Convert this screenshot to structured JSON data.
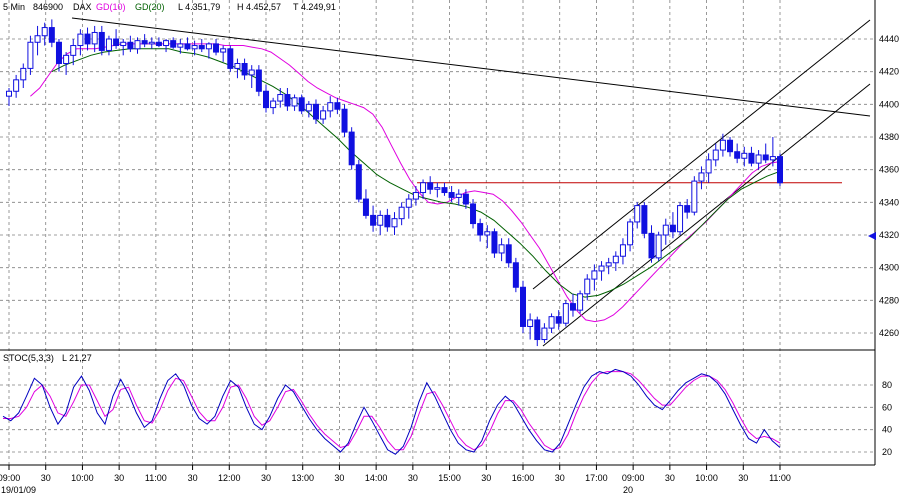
{
  "header": {
    "interval": "5 Min",
    "code": "846900",
    "symbol": "DAX",
    "ma1_label": "GD(10)",
    "ma2_label": "GD(20)",
    "low": "L  4.351,79",
    "high": "H  4.452,57",
    "bottom": "T  4.249,91"
  },
  "stoch": {
    "label": "STOC(5,3,3)",
    "value": "L  21,27"
  },
  "dates": {
    "start": "19/01/09",
    "next_day": "20"
  },
  "colors": {
    "candle": "#1010e0",
    "ma10": "#e000e0",
    "ma20": "#006000",
    "trend": "#000000",
    "support": "#c00000",
    "stoch_k": "#0000c0",
    "stoch_d": "#e000e0"
  },
  "chart_data": {
    "type": "candlestick",
    "price_axis": {
      "ticks": [
        4260,
        4280,
        4300,
        4320,
        4340,
        4360,
        4380,
        4400,
        4420,
        4440
      ]
    },
    "stoch_axis": {
      "ticks": [
        20,
        40,
        60,
        80
      ]
    },
    "x_ticks": [
      "09:00",
      "30",
      "10:00",
      "30",
      "11:00",
      "30",
      "12:00",
      "30",
      "13:00",
      "30",
      "14:00",
      "30",
      "15:00",
      "30",
      "16:00",
      "30",
      "17:00",
      "09:00",
      "30",
      "10:00",
      "30",
      "11:00"
    ],
    "grid": true,
    "support_level": 4352,
    "candles": [
      {
        "o": 4405,
        "h": 4410,
        "l": 4399,
        "c": 4408
      },
      {
        "o": 4408,
        "h": 4418,
        "l": 4404,
        "c": 4415
      },
      {
        "o": 4415,
        "h": 4425,
        "l": 4410,
        "c": 4422
      },
      {
        "o": 4422,
        "h": 4442,
        "l": 4418,
        "c": 4438
      },
      {
        "o": 4438,
        "h": 4448,
        "l": 4430,
        "c": 4442
      },
      {
        "o": 4442,
        "h": 4450,
        "l": 4436,
        "c": 4447
      },
      {
        "o": 4447,
        "h": 4452,
        "l": 4435,
        "c": 4438
      },
      {
        "o": 4438,
        "h": 4440,
        "l": 4420,
        "c": 4425
      },
      {
        "o": 4425,
        "h": 4432,
        "l": 4418,
        "c": 4430
      },
      {
        "o": 4430,
        "h": 4440,
        "l": 4424,
        "c": 4436
      },
      {
        "o": 4436,
        "h": 4446,
        "l": 4430,
        "c": 4443
      },
      {
        "o": 4443,
        "h": 4447,
        "l": 4433,
        "c": 4437
      },
      {
        "o": 4437,
        "h": 4448,
        "l": 4432,
        "c": 4444
      },
      {
        "o": 4444,
        "h": 4448,
        "l": 4430,
        "c": 4433
      },
      {
        "o": 4433,
        "h": 4442,
        "l": 4430,
        "c": 4440
      },
      {
        "o": 4440,
        "h": 4446,
        "l": 4434,
        "c": 4436
      },
      {
        "o": 4436,
        "h": 4440,
        "l": 4430,
        "c": 4438
      },
      {
        "o": 4438,
        "h": 4442,
        "l": 4432,
        "c": 4434
      },
      {
        "o": 4434,
        "h": 4441,
        "l": 4431,
        "c": 4439
      },
      {
        "o": 4439,
        "h": 4443,
        "l": 4435,
        "c": 4437
      },
      {
        "o": 4437,
        "h": 4441,
        "l": 4434,
        "c": 4438
      },
      {
        "o": 4438,
        "h": 4441,
        "l": 4435,
        "c": 4436
      },
      {
        "o": 4436,
        "h": 4440,
        "l": 4432,
        "c": 4439
      },
      {
        "o": 4439,
        "h": 4441,
        "l": 4434,
        "c": 4435
      },
      {
        "o": 4435,
        "h": 4440,
        "l": 4431,
        "c": 4437
      },
      {
        "o": 4437,
        "h": 4441,
        "l": 4433,
        "c": 4434
      },
      {
        "o": 4434,
        "h": 4439,
        "l": 4430,
        "c": 4436
      },
      {
        "o": 4436,
        "h": 4440,
        "l": 4432,
        "c": 4434
      },
      {
        "o": 4434,
        "h": 4438,
        "l": 4428,
        "c": 4437
      },
      {
        "o": 4437,
        "h": 4440,
        "l": 4430,
        "c": 4432
      },
      {
        "o": 4432,
        "h": 4436,
        "l": 4426,
        "c": 4434
      },
      {
        "o": 4434,
        "h": 4436,
        "l": 4420,
        "c": 4422
      },
      {
        "o": 4422,
        "h": 4428,
        "l": 4416,
        "c": 4425
      },
      {
        "o": 4425,
        "h": 4428,
        "l": 4415,
        "c": 4418
      },
      {
        "o": 4418,
        "h": 4424,
        "l": 4410,
        "c": 4421
      },
      {
        "o": 4421,
        "h": 4424,
        "l": 4405,
        "c": 4408
      },
      {
        "o": 4408,
        "h": 4412,
        "l": 4395,
        "c": 4398
      },
      {
        "o": 4398,
        "h": 4404,
        "l": 4394,
        "c": 4402
      },
      {
        "o": 4402,
        "h": 4410,
        "l": 4398,
        "c": 4406
      },
      {
        "o": 4406,
        "h": 4410,
        "l": 4396,
        "c": 4399
      },
      {
        "o": 4399,
        "h": 4406,
        "l": 4396,
        "c": 4404
      },
      {
        "o": 4404,
        "h": 4406,
        "l": 4394,
        "c": 4396
      },
      {
        "o": 4396,
        "h": 4402,
        "l": 4392,
        "c": 4400
      },
      {
        "o": 4400,
        "h": 4403,
        "l": 4388,
        "c": 4391
      },
      {
        "o": 4391,
        "h": 4399,
        "l": 4388,
        "c": 4396
      },
      {
        "o": 4396,
        "h": 4405,
        "l": 4392,
        "c": 4401
      },
      {
        "o": 4401,
        "h": 4404,
        "l": 4394,
        "c": 4397
      },
      {
        "o": 4397,
        "h": 4400,
        "l": 4380,
        "c": 4383
      },
      {
        "o": 4383,
        "h": 4386,
        "l": 4360,
        "c": 4363
      },
      {
        "o": 4363,
        "h": 4366,
        "l": 4340,
        "c": 4342
      },
      {
        "o": 4342,
        "h": 4348,
        "l": 4330,
        "c": 4332
      },
      {
        "o": 4332,
        "h": 4338,
        "l": 4322,
        "c": 4326
      },
      {
        "o": 4326,
        "h": 4335,
        "l": 4320,
        "c": 4332
      },
      {
        "o": 4332,
        "h": 4336,
        "l": 4322,
        "c": 4325
      },
      {
        "o": 4325,
        "h": 4334,
        "l": 4320,
        "c": 4330
      },
      {
        "o": 4330,
        "h": 4340,
        "l": 4326,
        "c": 4337
      },
      {
        "o": 4337,
        "h": 4345,
        "l": 4330,
        "c": 4342
      },
      {
        "o": 4342,
        "h": 4350,
        "l": 4338,
        "c": 4346
      },
      {
        "o": 4346,
        "h": 4354,
        "l": 4342,
        "c": 4352
      },
      {
        "o": 4352,
        "h": 4356,
        "l": 4345,
        "c": 4348
      },
      {
        "o": 4348,
        "h": 4352,
        "l": 4343,
        "c": 4349
      },
      {
        "o": 4349,
        "h": 4352,
        "l": 4344,
        "c": 4346
      },
      {
        "o": 4346,
        "h": 4350,
        "l": 4340,
        "c": 4343
      },
      {
        "o": 4343,
        "h": 4348,
        "l": 4338,
        "c": 4345
      },
      {
        "o": 4345,
        "h": 4348,
        "l": 4336,
        "c": 4339
      },
      {
        "o": 4339,
        "h": 4342,
        "l": 4324,
        "c": 4327
      },
      {
        "o": 4327,
        "h": 4330,
        "l": 4316,
        "c": 4320
      },
      {
        "o": 4320,
        "h": 4326,
        "l": 4312,
        "c": 4322
      },
      {
        "o": 4322,
        "h": 4324,
        "l": 4306,
        "c": 4309
      },
      {
        "o": 4309,
        "h": 4318,
        "l": 4304,
        "c": 4314
      },
      {
        "o": 4314,
        "h": 4318,
        "l": 4300,
        "c": 4303
      },
      {
        "o": 4303,
        "h": 4306,
        "l": 4285,
        "c": 4288
      },
      {
        "o": 4288,
        "h": 4292,
        "l": 4260,
        "c": 4264
      },
      {
        "o": 4264,
        "h": 4272,
        "l": 4256,
        "c": 4268
      },
      {
        "o": 4268,
        "h": 4270,
        "l": 4252,
        "c": 4256
      },
      {
        "o": 4256,
        "h": 4266,
        "l": 4254,
        "c": 4263
      },
      {
        "o": 4263,
        "h": 4272,
        "l": 4260,
        "c": 4270
      },
      {
        "o": 4270,
        "h": 4274,
        "l": 4262,
        "c": 4266
      },
      {
        "o": 4266,
        "h": 4280,
        "l": 4264,
        "c": 4278
      },
      {
        "o": 4278,
        "h": 4284,
        "l": 4270,
        "c": 4274
      },
      {
        "o": 4274,
        "h": 4286,
        "l": 4272,
        "c": 4284
      },
      {
        "o": 4284,
        "h": 4296,
        "l": 4280,
        "c": 4293
      },
      {
        "o": 4293,
        "h": 4302,
        "l": 4286,
        "c": 4298
      },
      {
        "o": 4298,
        "h": 4304,
        "l": 4292,
        "c": 4301
      },
      {
        "o": 4301,
        "h": 4306,
        "l": 4296,
        "c": 4303
      },
      {
        "o": 4303,
        "h": 4310,
        "l": 4298,
        "c": 4307
      },
      {
        "o": 4307,
        "h": 4318,
        "l": 4302,
        "c": 4314
      },
      {
        "o": 4314,
        "h": 4330,
        "l": 4310,
        "c": 4328
      },
      {
        "o": 4328,
        "h": 4340,
        "l": 4324,
        "c": 4338
      },
      {
        "o": 4338,
        "h": 4340,
        "l": 4318,
        "c": 4321
      },
      {
        "o": 4321,
        "h": 4326,
        "l": 4303,
        "c": 4306
      },
      {
        "o": 4306,
        "h": 4322,
        "l": 4304,
        "c": 4320
      },
      {
        "o": 4320,
        "h": 4330,
        "l": 4314,
        "c": 4326
      },
      {
        "o": 4326,
        "h": 4334,
        "l": 4318,
        "c": 4322
      },
      {
        "o": 4322,
        "h": 4340,
        "l": 4320,
        "c": 4338
      },
      {
        "o": 4338,
        "h": 4342,
        "l": 4330,
        "c": 4334
      },
      {
        "o": 4334,
        "h": 4356,
        "l": 4332,
        "c": 4353
      },
      {
        "o": 4353,
        "h": 4362,
        "l": 4348,
        "c": 4358
      },
      {
        "o": 4358,
        "h": 4370,
        "l": 4352,
        "c": 4366
      },
      {
        "o": 4366,
        "h": 4376,
        "l": 4362,
        "c": 4372
      },
      {
        "o": 4372,
        "h": 4382,
        "l": 4368,
        "c": 4378
      },
      {
        "o": 4378,
        "h": 4380,
        "l": 4368,
        "c": 4371
      },
      {
        "o": 4371,
        "h": 4376,
        "l": 4364,
        "c": 4367
      },
      {
        "o": 4367,
        "h": 4374,
        "l": 4362,
        "c": 4370
      },
      {
        "o": 4370,
        "h": 4374,
        "l": 4362,
        "c": 4364
      },
      {
        "o": 4364,
        "h": 4372,
        "l": 4360,
        "c": 4369
      },
      {
        "o": 4369,
        "h": 4376,
        "l": 4364,
        "c": 4366
      },
      {
        "o": 4366,
        "h": 4380,
        "l": 4362,
        "c": 4368
      },
      {
        "o": 4368,
        "h": 4370,
        "l": 4350,
        "c": 4352
      }
    ],
    "ma10": [
      4405,
      4410,
      4418,
      4426,
      4431,
      4434,
      4434,
      4434,
      4435,
      4436,
      4437,
      4437,
      4437,
      4437,
      4437,
      4437,
      4437,
      4437,
      4437,
      4437,
      4437,
      4436,
      4436,
      4436,
      4435,
      4434,
      4432,
      4428,
      4424,
      4419,
      4414,
      4410,
      4407,
      4404,
      4402,
      4400,
      4398,
      4394,
      4386,
      4375,
      4364,
      4354,
      4346,
      4340,
      4339,
      4340,
      4343,
      4346,
      4347,
      4346,
      4345,
      4341,
      4335,
      4328,
      4320,
      4312,
      4302,
      4292,
      4282,
      4274,
      4268,
      4267,
      4268,
      4271,
      4276,
      4282,
      4288,
      4294,
      4300,
      4306,
      4312,
      4318,
      4323,
      4328,
      4334,
      4340,
      4346,
      4352,
      4358,
      4362,
      4364,
      4365
    ],
    "ma20": [
      4420,
      4424,
      4427,
      4430,
      4432,
      4433,
      4434,
      4434,
      4434,
      4434,
      4432,
      4431,
      4429,
      4426,
      4423,
      4419,
      4415,
      4411,
      4406,
      4400,
      4393,
      4386,
      4379,
      4371,
      4364,
      4357,
      4352,
      4348,
      4344,
      4342,
      4340,
      4339,
      4337,
      4334,
      4329,
      4322,
      4315,
      4307,
      4298,
      4290,
      4284,
      4282,
      4283,
      4286,
      4290,
      4295,
      4300,
      4306,
      4312,
      4318,
      4326,
      4334,
      4342,
      4348,
      4352,
      4356,
      4359
    ]
  },
  "stoch_data": {
    "k": [
      52,
      48,
      55,
      70,
      86,
      80,
      60,
      45,
      55,
      78,
      88,
      75,
      55,
      45,
      70,
      85,
      72,
      55,
      42,
      48,
      68,
      84,
      90,
      80,
      62,
      50,
      45,
      52,
      70,
      84,
      78,
      60,
      45,
      40,
      52,
      68,
      80,
      74,
      62,
      50,
      40,
      32,
      26,
      20,
      28,
      45,
      60,
      48,
      35,
      22,
      18,
      25,
      42,
      65,
      82,
      70,
      55,
      40,
      28,
      22,
      20,
      30,
      48,
      62,
      70,
      64,
      52,
      40,
      30,
      22,
      20,
      28,
      45,
      62,
      78,
      88,
      92,
      90,
      94,
      92,
      88,
      80,
      70,
      62,
      58,
      66,
      75,
      82,
      86,
      90,
      88,
      82,
      72,
      58,
      44,
      32,
      28,
      40,
      30,
      24
    ],
    "d": [
      50,
      50,
      52,
      60,
      74,
      80,
      70,
      55,
      52,
      65,
      80,
      80,
      66,
      52,
      58,
      76,
      78,
      62,
      48,
      46,
      58,
      75,
      86,
      84,
      70,
      56,
      48,
      48,
      60,
      78,
      80,
      68,
      52,
      44,
      48,
      60,
      74,
      76,
      66,
      54,
      44,
      36,
      30,
      24,
      26,
      38,
      52,
      52,
      42,
      30,
      22,
      22,
      34,
      54,
      72,
      74,
      62,
      48,
      34,
      26,
      22,
      26,
      38,
      54,
      66,
      66,
      58,
      46,
      36,
      26,
      22,
      24,
      36,
      54,
      70,
      82,
      90,
      92,
      92,
      92,
      90,
      84,
      76,
      68,
      62,
      62,
      70,
      78,
      84,
      88,
      88,
      84,
      76,
      64,
      50,
      38,
      32,
      34,
      32,
      28
    ]
  }
}
